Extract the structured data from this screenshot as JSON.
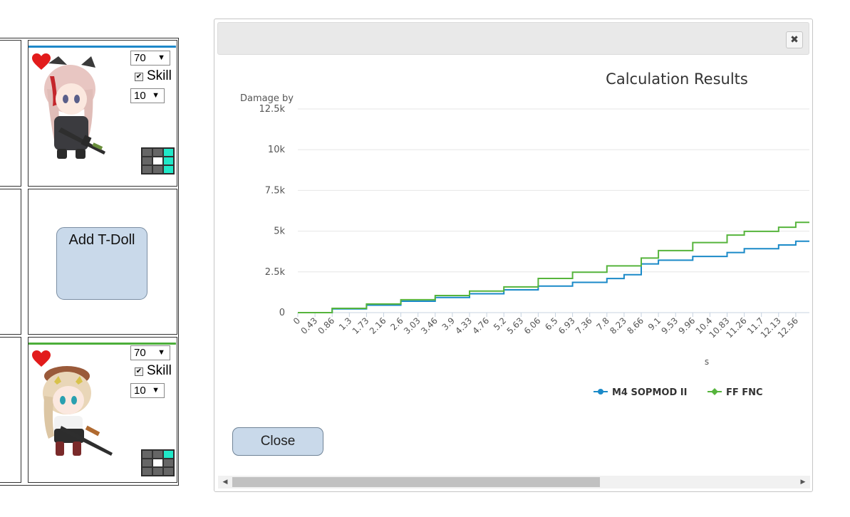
{
  "slots": [
    {
      "level": "70",
      "skill_label": "Skill",
      "skill_level": "10",
      "accent": "#1e88c9"
    },
    {
      "add_label": "Add T-Doll"
    },
    {
      "level": "70",
      "skill_label": "Skill",
      "skill_level": "10",
      "accent": "#4caf3a"
    }
  ],
  "dialog": {
    "close_label": "Close"
  },
  "chart_data": {
    "type": "line",
    "step": true,
    "title": "Calculation Results",
    "ylabel": "Damage by",
    "xlabel": "s",
    "ylim": [
      0,
      12500
    ],
    "yticks": [
      0,
      2500,
      5000,
      7500,
      10000,
      12500
    ],
    "ytick_labels": [
      "0",
      "2.5k",
      "5k",
      "7.5k",
      "10k",
      "12.5k"
    ],
    "x": [
      0,
      0.43,
      0.86,
      1.3,
      1.73,
      2.16,
      2.6,
      3.03,
      3.46,
      3.9,
      4.33,
      4.76,
      5.2,
      5.63,
      6.06,
      6.5,
      6.93,
      7.36,
      7.8,
      8.23,
      8.66,
      9.1,
      9.53,
      9.96,
      10.4,
      10.83,
      11.26,
      11.7,
      12.13,
      12.56
    ],
    "x_tick_labels": [
      "0",
      "0.43",
      "0.86",
      "1.3",
      "1.73",
      "2.16",
      "2.6",
      "3.03",
      "3.46",
      "3.9",
      "4.33",
      "4.76",
      "5.2",
      "5.63",
      "6.06",
      "6.5",
      "6.93",
      "7.36",
      "7.8",
      "8.23",
      "8.66",
      "9.1",
      "9.53",
      "9.96",
      "10.4",
      "10.83",
      "11.26",
      "11.7",
      "12.13",
      "12.56"
    ],
    "grid": true,
    "legend_position": "bottom-center",
    "series": [
      {
        "name": "M4 SOPMOD II",
        "color": "#1b8ac8",
        "values": [
          0,
          0,
          230,
          230,
          460,
          460,
          700,
          700,
          930,
          930,
          1160,
          1160,
          1400,
          1400,
          1630,
          1630,
          1860,
          1860,
          2090,
          2330,
          2990,
          3220,
          3220,
          3450,
          3450,
          3690,
          3920,
          3920,
          4150,
          4380
        ]
      },
      {
        "name": "FF FNC",
        "color": "#56b43c",
        "values": [
          0,
          0,
          260,
          260,
          530,
          530,
          790,
          790,
          1050,
          1050,
          1320,
          1320,
          1580,
          1580,
          2100,
          2100,
          2480,
          2480,
          2870,
          2870,
          3350,
          3810,
          3810,
          4300,
          4300,
          4760,
          4990,
          4990,
          5240,
          5540
        ]
      }
    ]
  }
}
